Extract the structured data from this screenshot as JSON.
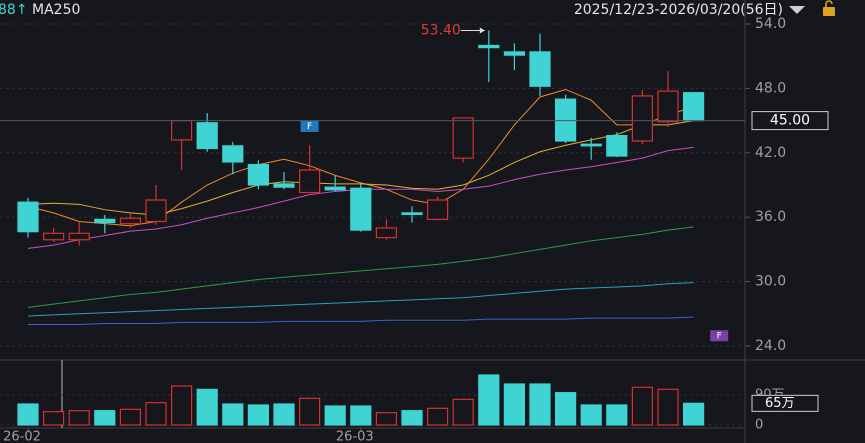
{
  "chart_data": {
    "type": "candlestick",
    "header_left": [
      "88↑",
      "MA250"
    ],
    "date_range": "2025/12/23-2026/03/20(56日)",
    "categories": [
      "26-02",
      null,
      null,
      null,
      null,
      null,
      null,
      null,
      null,
      null,
      null,
      null,
      null,
      "26-03",
      null,
      null,
      null,
      null,
      null,
      null,
      null,
      null,
      null,
      null,
      null,
      null,
      null
    ],
    "open": [
      37.4,
      33.9,
      33.9,
      35.8,
      35.4,
      35.6,
      43.2,
      44.8,
      42.65,
      40.9,
      39.1,
      38.3,
      38.8,
      38.7,
      34.1,
      36.4,
      35.8,
      41.5,
      52.0,
      51.4,
      51.4,
      47.0,
      42.8,
      43.6,
      43.1,
      44.9,
      47.6
    ],
    "high": [
      37.8,
      35.0,
      35.6,
      36.2,
      36.5,
      39.0,
      45.0,
      45.7,
      43.0,
      41.3,
      40.2,
      42.7,
      39.85,
      39.2,
      35.8,
      37.0,
      37.9,
      45.25,
      53.4,
      52.2,
      53.1,
      47.4,
      43.4,
      43.9,
      47.85,
      49.6,
      47.6
    ],
    "low": [
      34.1,
      33.7,
      33.35,
      34.5,
      35.0,
      35.3,
      40.4,
      42.1,
      40.0,
      38.6,
      38.6,
      38.2,
      38.4,
      34.65,
      33.9,
      35.5,
      35.7,
      41.1,
      48.6,
      49.7,
      47.3,
      42.9,
      41.35,
      41.6,
      42.8,
      44.4,
      45.0
    ],
    "close": [
      34.65,
      34.5,
      34.5,
      35.5,
      35.9,
      37.6,
      45.0,
      42.4,
      41.15,
      39.0,
      38.8,
      40.4,
      38.55,
      34.8,
      35.0,
      36.3,
      37.6,
      45.25,
      51.8,
      51.1,
      48.2,
      43.1,
      42.65,
      41.7,
      47.3,
      47.75,
      45.0
    ],
    "up_color": "#d8302f",
    "down_color": "#3fd3d3",
    "ylim": [
      24,
      54
    ],
    "yticks": [
      {
        "value": 24,
        "label": "24.0"
      },
      {
        "value": 30,
        "label": "30.0"
      },
      {
        "value": 36,
        "label": "36.0"
      },
      {
        "value": 42,
        "label": "42.0"
      },
      {
        "value": 48,
        "label": "48.0"
      },
      {
        "value": 54,
        "label": "54.0"
      }
    ],
    "grid": true,
    "ma_lines": [
      {
        "color": "#f08a2c",
        "values": [
          37.0,
          36.4,
          35.6,
          35.4,
          35.2,
          35.6,
          37.4,
          39.0,
          40.1,
          40.9,
          41.4,
          40.8,
          39.9,
          39.2,
          38.6,
          37.6,
          37.2,
          38.6,
          41.4,
          44.6,
          47.2,
          47.9,
          46.9,
          44.6,
          44.6,
          45.5,
          46.3
        ]
      },
      {
        "color": "#e0b03a",
        "values": [
          37.2,
          37.3,
          37.2,
          36.7,
          36.4,
          36.2,
          36.8,
          37.5,
          38.3,
          39.0,
          39.3,
          39.2,
          39.1,
          39.1,
          39.0,
          38.7,
          38.6,
          39.0,
          39.9,
          41.1,
          42.1,
          42.7,
          43.2,
          43.7,
          44.6,
          44.6,
          45.0
        ]
      },
      {
        "color": "#c84fc8",
        "values": [
          33.1,
          33.4,
          33.9,
          34.3,
          34.7,
          34.9,
          35.3,
          35.9,
          36.4,
          36.9,
          37.5,
          38.1,
          38.4,
          38.6,
          38.6,
          38.6,
          38.4,
          38.6,
          38.9,
          39.5,
          40.0,
          40.4,
          40.7,
          41.1,
          41.5,
          42.2,
          42.5
        ]
      },
      {
        "color": "#2f9a4a",
        "values": [
          27.6,
          27.9,
          28.2,
          28.5,
          28.8,
          29.0,
          29.3,
          29.6,
          29.9,
          30.2,
          30.4,
          30.6,
          30.8,
          31.0,
          31.2,
          31.4,
          31.6,
          31.9,
          32.2,
          32.6,
          33.0,
          33.4,
          33.8,
          34.1,
          34.4,
          34.8,
          35.1
        ]
      },
      {
        "color": "#2a9fc0",
        "values": [
          26.8,
          26.9,
          27.0,
          27.1,
          27.2,
          27.3,
          27.4,
          27.5,
          27.6,
          27.7,
          27.8,
          27.9,
          28.0,
          28.1,
          28.2,
          28.3,
          28.4,
          28.5,
          28.7,
          28.9,
          29.1,
          29.3,
          29.4,
          29.5,
          29.6,
          29.8,
          29.9
        ]
      },
      {
        "color": "#3b5fd0",
        "values": [
          26.0,
          26.0,
          26.0,
          26.1,
          26.1,
          26.1,
          26.2,
          26.2,
          26.2,
          26.2,
          26.3,
          26.3,
          26.3,
          26.3,
          26.4,
          26.4,
          26.4,
          26.4,
          26.5,
          26.5,
          26.5,
          26.5,
          26.6,
          26.6,
          26.6,
          26.6,
          26.7
        ]
      }
    ],
    "max_high_label": "53.40",
    "last_price_label": "45.00",
    "markers": [
      {
        "index": 11,
        "price": 44.5,
        "label": "F",
        "color": "#1f78c0"
      },
      {
        "index": 27,
        "price": 25.0,
        "label": "F",
        "color": "#7a3fa8"
      }
    ],
    "volume": {
      "values": [
        63,
        40,
        43,
        43,
        47,
        67,
        117,
        107,
        63,
        60,
        63,
        80,
        57,
        57,
        37,
        43,
        50,
        77,
        150,
        123,
        123,
        97,
        60,
        60,
        113,
        107,
        65
      ],
      "ylim": [
        0,
        150
      ],
      "yticks": [
        0,
        {
          "value": 90,
          "label": "90万"
        }
      ],
      "last_label": "65万"
    }
  }
}
